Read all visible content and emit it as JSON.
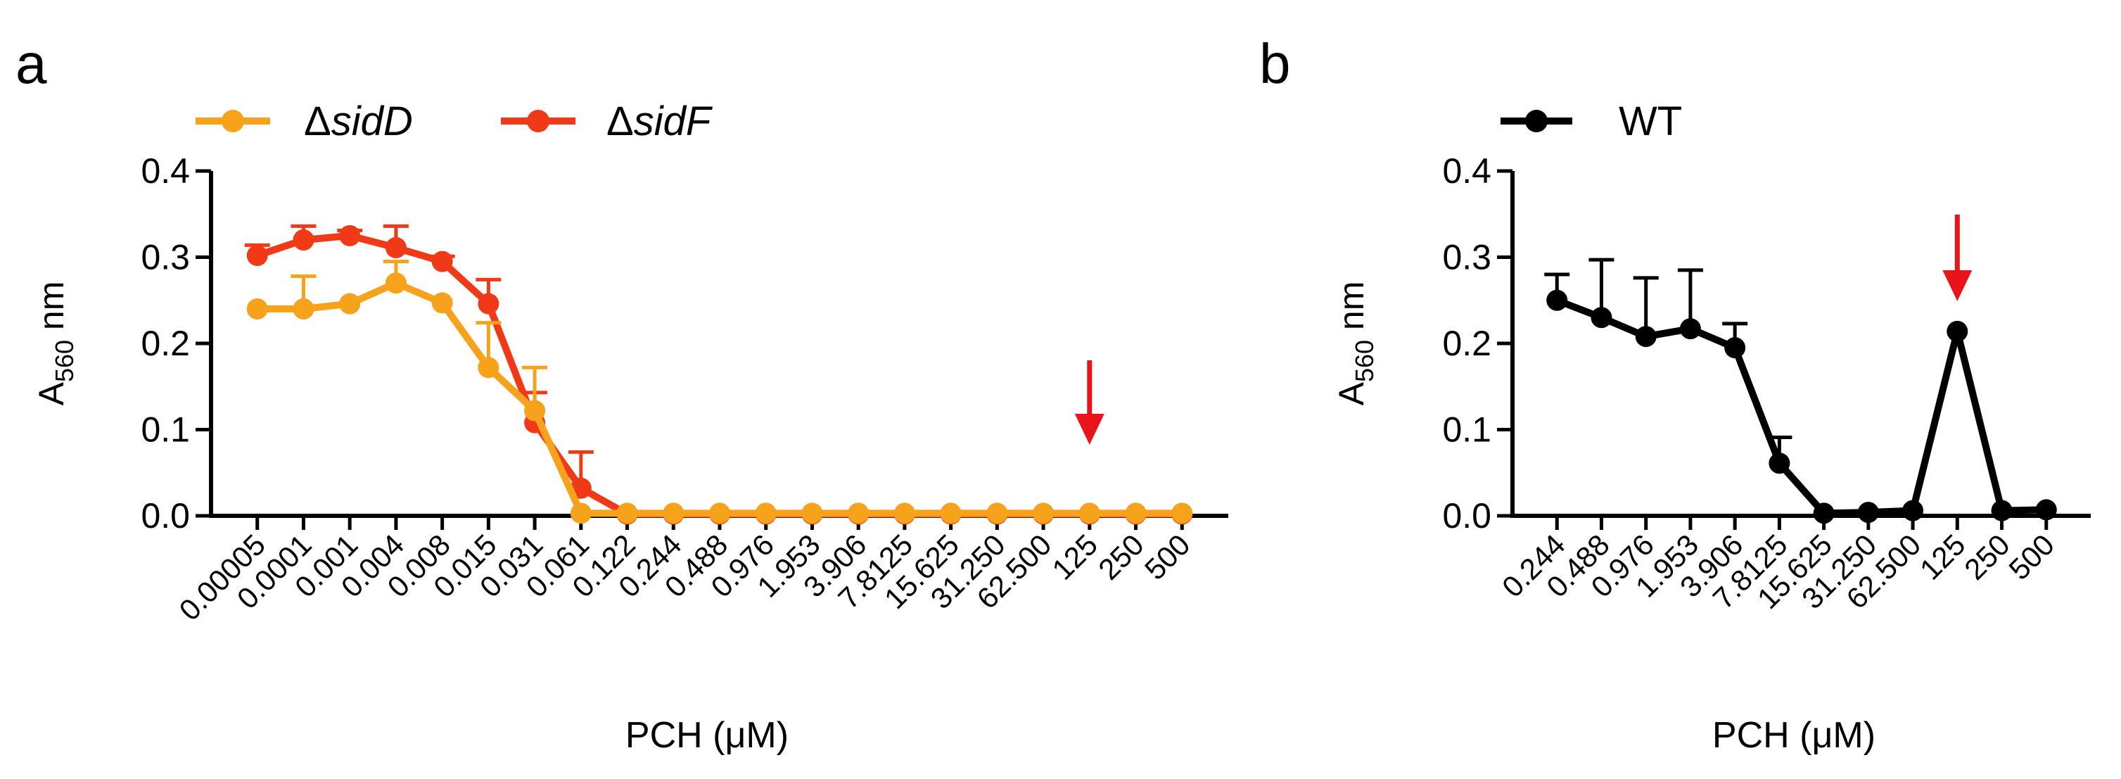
{
  "chart_data": [
    {
      "panel_label": "a",
      "type": "line",
      "xlabel": "PCH (μM)",
      "ylabel_main": "A",
      "ylabel_sub": "560",
      "ylabel_unit": " nm",
      "ylim": [
        0,
        0.4
      ],
      "yticks": [
        "0.0",
        "0.1",
        "0.2",
        "0.3",
        "0.4"
      ],
      "categories": [
        "0.00005",
        "0.0001",
        "0.001",
        "0.004",
        "0.008",
        "0.015",
        "0.031",
        "0.061",
        "0.122",
        "0.244",
        "0.488",
        "0.976",
        "1.953",
        "3.906",
        "7.8125",
        "15.625",
        "31.250",
        "62.500",
        "125",
        "250",
        "500"
      ],
      "series": [
        {
          "name": "sidF",
          "legend_prefix": "Δ",
          "legend_italic": "sidF",
          "color": "#f03a17",
          "values": [
            0.302,
            0.32,
            0.325,
            0.311,
            0.295,
            0.246,
            0.108,
            0.032,
            0.002,
            0.002,
            0.002,
            0.002,
            0.002,
            0.002,
            0.002,
            0.002,
            0.002,
            0.002,
            0.002,
            0.002,
            0.002
          ],
          "errors": [
            0.012,
            0.016,
            0.006,
            0.025,
            0.006,
            0.028,
            0.035,
            0.042,
            0.0,
            0.0,
            0.0,
            0.0,
            0.0,
            0.0,
            0.0,
            0.0,
            0.0,
            0.0,
            0.0,
            0.0,
            0.0
          ]
        },
        {
          "name": "sidD",
          "legend_prefix": "Δ",
          "legend_italic": "sidD",
          "color": "#f7a21b",
          "values": [
            0.24,
            0.24,
            0.246,
            0.27,
            0.247,
            0.172,
            0.122,
            0.003,
            0.003,
            0.003,
            0.003,
            0.003,
            0.003,
            0.003,
            0.003,
            0.003,
            0.003,
            0.003,
            0.003,
            0.003,
            0.003
          ],
          "errors": [
            0.0,
            0.038,
            0.0,
            0.025,
            0.0,
            0.052,
            0.05,
            0.0,
            0.0,
            0.0,
            0.0,
            0.0,
            0.0,
            0.0,
            0.0,
            0.0,
            0.0,
            0.0,
            0.0,
            0.0,
            0.0
          ]
        }
      ],
      "legend_order": [
        "sidD",
        "sidF"
      ],
      "arrow_at": "125",
      "arrow_color": "#e8141a"
    },
    {
      "panel_label": "b",
      "type": "line",
      "xlabel": "PCH (μM)",
      "ylabel_main": "A",
      "ylabel_sub": "560",
      "ylabel_unit": " nm",
      "ylim": [
        0,
        0.4
      ],
      "yticks": [
        "0.0",
        "0.1",
        "0.2",
        "0.3",
        "0.4"
      ],
      "categories": [
        "0.244",
        "0.488",
        "0.976",
        "1.953",
        "3.906",
        "7.8125",
        "15.625",
        "31.250",
        "62.500",
        "125",
        "250",
        "500"
      ],
      "series": [
        {
          "name": "WT",
          "legend_prefix": "",
          "legend_italic": "",
          "legend_text": "WT",
          "color": "#000000",
          "values": [
            0.25,
            0.23,
            0.208,
            0.217,
            0.195,
            0.061,
            0.003,
            0.004,
            0.006,
            0.214,
            0.006,
            0.007
          ],
          "errors": [
            0.03,
            0.067,
            0.068,
            0.068,
            0.028,
            0.03,
            0.0,
            0.0,
            0.0,
            0.0,
            0.0,
            0.0
          ]
        }
      ],
      "legend_order": [
        "WT"
      ],
      "arrow_at": "125",
      "arrow_color": "#e8141a"
    }
  ]
}
